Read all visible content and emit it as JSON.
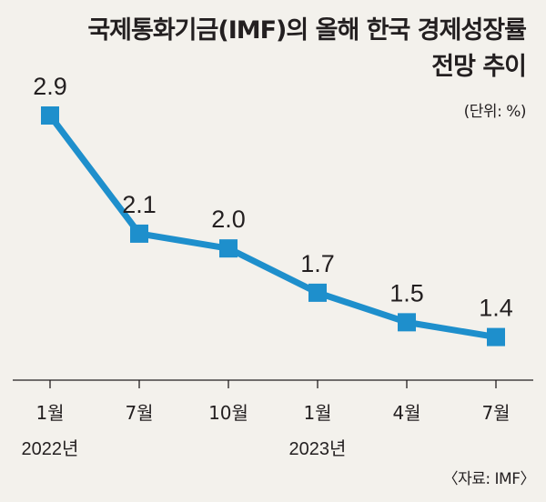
{
  "title": {
    "line1": "국제통화기금(IMF)의 올해 한국 경제성장률",
    "line2": "전망 추이"
  },
  "unit": "(단위: %)",
  "source": "〈자료: IMF〉",
  "colors": {
    "line": "#1e8fcc",
    "marker": "#1e8fcc",
    "axis": "#231f20",
    "background": "#f3f1ec"
  },
  "chart_data": {
    "type": "line",
    "title": "국제통화기금(IMF)의 올해 한국 경제성장률 전망 추이",
    "ylabel": "(단위: %)",
    "categories": [
      "1월",
      "7월",
      "10월",
      "1월",
      "4월",
      "7월"
    ],
    "year_labels": [
      "2022년",
      "",
      "",
      "2023년",
      "",
      ""
    ],
    "series": [
      {
        "values": [
          2.9,
          2.1,
          2.0,
          1.7,
          1.5,
          1.4
        ]
      }
    ],
    "grid": false,
    "marker": "square"
  }
}
